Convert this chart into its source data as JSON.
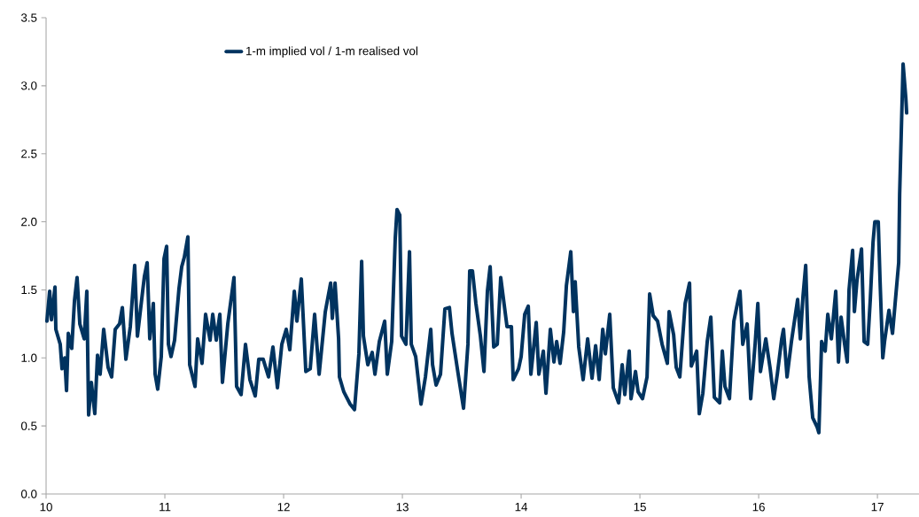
{
  "chart_data": {
    "type": "line",
    "xlim": [
      10,
      17.35
    ],
    "ylim": [
      0,
      3.5
    ],
    "xticks": [
      10,
      11,
      12,
      13,
      14,
      15,
      16,
      17
    ],
    "yticks": [
      {
        "value": 0,
        "label": "0.0"
      },
      {
        "value": 0.5,
        "label": "0.5"
      },
      {
        "value": 1,
        "label": "1.0"
      },
      {
        "value": 1.5,
        "label": "1.5"
      },
      {
        "value": 2,
        "label": "2.0"
      },
      {
        "value": 2.5,
        "label": "2.5"
      },
      {
        "value": 3,
        "label": "3.0"
      },
      {
        "value": 3.5,
        "label": "3.5"
      }
    ],
    "grid": false,
    "legend": "top left",
    "marker": "none",
    "line_style": "solid",
    "series": [
      {
        "name": "1-m implied vol / 1-m realised vol",
        "color": "#00335f",
        "x": [
          10.007,
          10.03,
          10.045,
          10.075,
          10.082,
          10.119,
          10.134,
          10.157,
          10.172,
          10.187,
          10.216,
          10.239,
          10.261,
          10.284,
          10.321,
          10.343,
          10.358,
          10.381,
          10.41,
          10.433,
          10.455,
          10.485,
          10.522,
          10.552,
          10.582,
          10.619,
          10.642,
          10.672,
          10.709,
          10.746,
          10.769,
          10.813,
          10.828,
          10.851,
          10.873,
          10.903,
          10.918,
          10.94,
          10.97,
          10.993,
          11.015,
          11.03,
          11.052,
          11.082,
          11.119,
          11.142,
          11.164,
          11.194,
          11.209,
          11.254,
          11.276,
          11.313,
          11.343,
          11.381,
          11.403,
          11.433,
          11.463,
          11.485,
          11.53,
          11.582,
          11.604,
          11.642,
          11.679,
          11.716,
          11.761,
          11.791,
          11.828,
          11.873,
          11.91,
          11.948,
          11.985,
          12.022,
          12.052,
          12.09,
          12.112,
          12.149,
          12.187,
          12.224,
          12.261,
          12.299,
          12.351,
          12.396,
          12.41,
          12.433,
          12.463,
          12.47,
          12.507,
          12.56,
          12.597,
          12.634,
          12.657,
          12.672,
          12.709,
          12.746,
          12.769,
          12.806,
          12.851,
          12.873,
          12.91,
          12.94,
          12.955,
          12.978,
          12.993,
          13.03,
          13.06,
          13.075,
          13.112,
          13.157,
          13.194,
          13.239,
          13.254,
          13.284,
          13.321,
          13.358,
          13.396,
          13.418,
          13.47,
          13.515,
          13.552,
          13.567,
          13.59,
          13.619,
          13.657,
          13.687,
          13.716,
          13.739,
          13.769,
          13.799,
          13.828,
          13.881,
          13.918,
          13.933,
          13.978,
          14.0,
          14.03,
          14.06,
          14.082,
          14.127,
          14.149,
          14.187,
          14.209,
          14.246,
          14.276,
          14.299,
          14.328,
          14.358,
          14.381,
          14.418,
          14.44,
          14.455,
          14.485,
          14.522,
          14.56,
          14.597,
          14.627,
          14.657,
          14.687,
          14.709,
          14.746,
          14.776,
          14.821,
          14.851,
          14.873,
          14.91,
          14.925,
          14.963,
          14.985,
          15.022,
          15.06,
          15.082,
          15.112,
          15.149,
          15.187,
          15.231,
          15.246,
          15.284,
          15.306,
          15.336,
          15.381,
          15.418,
          15.433,
          15.478,
          15.5,
          15.53,
          15.567,
          15.597,
          15.627,
          15.672,
          15.694,
          15.716,
          15.754,
          15.791,
          15.821,
          15.843,
          15.866,
          15.903,
          15.933,
          15.97,
          15.993,
          16.015,
          16.06,
          16.097,
          16.127,
          16.157,
          16.194,
          16.209,
          16.239,
          16.276,
          16.328,
          16.351,
          16.373,
          16.396,
          16.425,
          16.455,
          16.493,
          16.507,
          16.53,
          16.56,
          16.582,
          16.612,
          16.649,
          16.672,
          16.694,
          16.724,
          16.746,
          16.761,
          16.791,
          16.806,
          16.828,
          16.866,
          16.888,
          16.918,
          16.94,
          16.963,
          16.978,
          17.007,
          17.022,
          17.045,
          17.06,
          17.097,
          17.127,
          17.149,
          17.179,
          17.187,
          17.216,
          17.239,
          17.246
        ],
        "values": [
          1.27,
          1.49,
          1.28,
          1.52,
          1.21,
          1.1,
          0.92,
          1.0,
          0.76,
          1.18,
          1.07,
          1.42,
          1.59,
          1.25,
          1.14,
          1.49,
          0.58,
          0.82,
          0.59,
          1.02,
          0.88,
          1.21,
          0.93,
          0.86,
          1.21,
          1.25,
          1.37,
          0.99,
          1.23,
          1.68,
          1.16,
          1.49,
          1.6,
          1.7,
          1.14,
          1.4,
          0.88,
          0.77,
          1.01,
          1.73,
          1.82,
          1.1,
          1.01,
          1.13,
          1.51,
          1.67,
          1.74,
          1.89,
          0.95,
          0.79,
          1.14,
          0.96,
          1.32,
          1.13,
          1.32,
          1.13,
          1.32,
          0.82,
          1.25,
          1.59,
          0.79,
          0.73,
          1.1,
          0.84,
          0.72,
          0.99,
          0.99,
          0.86,
          1.08,
          0.78,
          1.1,
          1.21,
          1.06,
          1.49,
          1.27,
          1.58,
          0.9,
          0.92,
          1.32,
          0.88,
          1.34,
          1.55,
          1.29,
          1.55,
          1.14,
          0.86,
          0.75,
          0.66,
          0.62,
          1.03,
          1.71,
          1.16,
          0.95,
          1.04,
          0.88,
          1.12,
          1.27,
          0.88,
          1.12,
          1.88,
          2.09,
          2.05,
          1.16,
          1.1,
          1.78,
          1.1,
          1.01,
          0.66,
          0.86,
          1.21,
          0.95,
          0.8,
          0.88,
          1.36,
          1.37,
          1.18,
          0.88,
          0.63,
          1.1,
          1.64,
          1.64,
          1.4,
          1.16,
          0.9,
          1.49,
          1.67,
          1.08,
          1.1,
          1.59,
          1.23,
          1.23,
          0.84,
          0.92,
          1.01,
          1.32,
          1.38,
          0.88,
          1.26,
          0.88,
          1.05,
          0.74,
          1.21,
          0.97,
          1.12,
          0.96,
          1.19,
          1.53,
          1.78,
          1.34,
          1.56,
          1.08,
          0.84,
          1.14,
          0.85,
          1.09,
          0.84,
          1.21,
          1.03,
          1.32,
          0.78,
          0.67,
          0.95,
          0.73,
          1.05,
          0.7,
          0.9,
          0.75,
          0.7,
          0.86,
          1.47,
          1.31,
          1.27,
          1.1,
          0.96,
          1.34,
          1.17,
          0.93,
          0.86,
          1.4,
          1.55,
          0.94,
          1.05,
          0.59,
          0.74,
          1.12,
          1.3,
          0.71,
          0.67,
          1.05,
          0.79,
          0.7,
          1.27,
          1.4,
          1.49,
          1.1,
          1.25,
          0.7,
          1.1,
          1.4,
          0.9,
          1.14,
          0.92,
          0.7,
          0.88,
          1.14,
          1.21,
          0.86,
          1.12,
          1.43,
          1.14,
          1.45,
          1.68,
          0.86,
          0.56,
          0.49,
          0.45,
          1.12,
          1.05,
          1.32,
          1.14,
          1.49,
          0.97,
          1.3,
          1.1,
          0.97,
          1.5,
          1.79,
          1.34,
          1.57,
          1.8,
          1.12,
          1.1,
          1.43,
          1.85,
          2.0,
          2.0,
          1.57,
          1.0,
          1.12,
          1.35,
          1.18,
          1.4,
          1.7,
          2.2,
          3.16,
          2.91,
          2.8
        ]
      }
    ]
  }
}
